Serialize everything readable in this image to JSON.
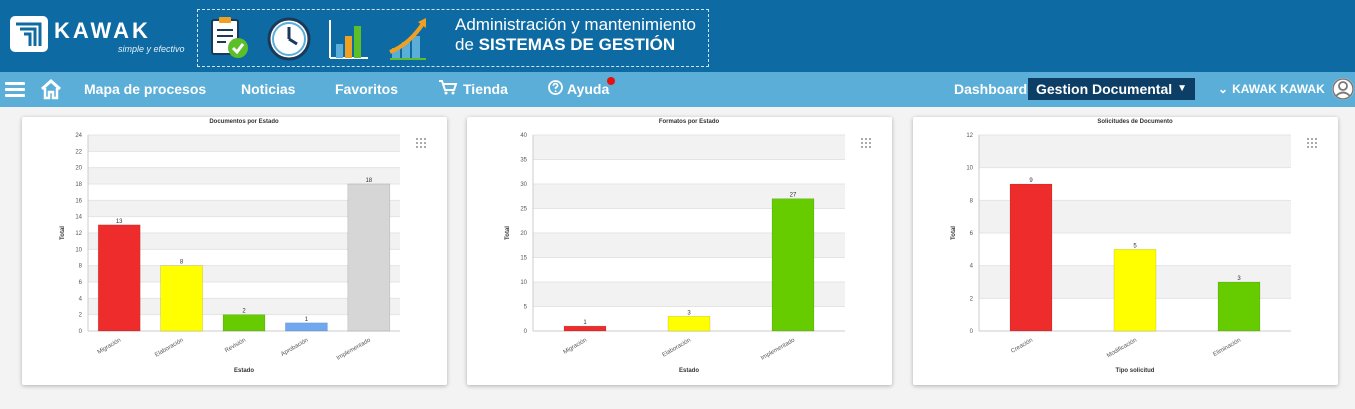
{
  "header": {
    "logo": {
      "word": "KAWAK",
      "tagline": "simple y efectivo"
    },
    "banner": {
      "line1": "Administración y mantenimiento",
      "line2_prefix": "de ",
      "line2_bold": "SISTEMAS DE GESTIÓN"
    },
    "banner_icons": [
      "clipboard-check-icon",
      "clock-icon",
      "bar-chart-icon",
      "growth-arrow-icon"
    ],
    "colors": {
      "topbar": "#0d6aa3",
      "navbar": "#5aaed8"
    }
  },
  "nav": {
    "items": [
      {
        "label": "Mapa de procesos"
      },
      {
        "label": "Noticias"
      },
      {
        "label": "Favoritos"
      },
      {
        "label": "Tienda",
        "icon": "cart-icon"
      },
      {
        "label": "Ayuda",
        "icon": "help-icon"
      }
    ],
    "dashboard_label": "Dashboard",
    "dashboard_selected": "Gestion Documental",
    "user_label": "KAWAK KAWAK"
  },
  "chart_data": [
    {
      "type": "bar",
      "title": "Documentos por Estado",
      "xlabel": "Estado",
      "ylabel": "Total",
      "ylim": [
        0,
        24
      ],
      "yticks": [
        0,
        2,
        4,
        6,
        8,
        10,
        12,
        14,
        16,
        18,
        20,
        22,
        24
      ],
      "categories": [
        "Migración",
        "Elaboración",
        "Revisión",
        "Aprobación",
        "Implementado"
      ],
      "values": [
        13,
        8,
        2,
        1,
        18
      ],
      "colors": [
        "#ee2c2c",
        "#ffff00",
        "#66cc00",
        "#6fa8f0",
        "#d6d6d6"
      ],
      "value_labels": [
        "13",
        "8",
        "2",
        "1",
        "18"
      ],
      "grid": true
    },
    {
      "type": "bar",
      "title": "Formatos por Estado",
      "xlabel": "Estado",
      "ylabel": "Total",
      "ylim": [
        0,
        40
      ],
      "yticks": [
        0,
        5,
        10,
        15,
        20,
        25,
        30,
        35,
        40
      ],
      "categories": [
        "Migración",
        "Elaboración",
        "Implementado"
      ],
      "values": [
        1,
        3,
        27
      ],
      "colors": [
        "#ee2c2c",
        "#ffff00",
        "#66cc00"
      ],
      "value_labels": [
        "1",
        "3",
        "27"
      ],
      "grid": true
    },
    {
      "type": "bar",
      "title": "Solicitudes de Documento",
      "xlabel": "Tipo solicitud",
      "ylabel": "Total",
      "ylim": [
        0,
        12
      ],
      "yticks": [
        0,
        2,
        4,
        6,
        8,
        10,
        12
      ],
      "categories": [
        "Creación",
        "Modificación",
        "Eliminación"
      ],
      "values": [
        9,
        5,
        3
      ],
      "colors": [
        "#ee2c2c",
        "#ffff00",
        "#66cc00"
      ],
      "value_labels": [
        "9",
        "5",
        "3"
      ],
      "grid": true
    }
  ]
}
